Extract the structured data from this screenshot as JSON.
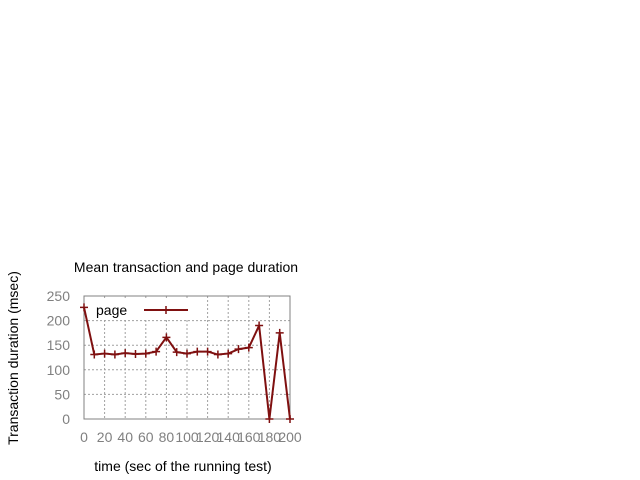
{
  "chart_data": {
    "type": "line",
    "title": "Mean transaction and page duration",
    "xlabel": "time (sec of the running test)",
    "ylabel": "Transaction duration (msec)",
    "xlim": [
      0,
      200
    ],
    "ylim": [
      0,
      250
    ],
    "x_ticks": [
      "0",
      "20",
      "40",
      "60",
      "80",
      "100",
      "120",
      "140",
      "160",
      "180",
      "200"
    ],
    "y_ticks": [
      "0",
      "50",
      "100",
      "150",
      "200",
      "250"
    ],
    "grid": true,
    "legend_position": "top-left",
    "series": [
      {
        "name": "page",
        "color": "#7f1010",
        "marker": "plus",
        "x": [
          0,
          10,
          20,
          30,
          40,
          50,
          60,
          70,
          80,
          90,
          100,
          110,
          120,
          130,
          140,
          150,
          160,
          170,
          180,
          190,
          200
        ],
        "y": [
          227,
          131,
          133,
          131,
          134,
          132,
          133,
          137,
          166,
          136,
          133,
          137,
          137,
          131,
          133,
          142,
          145,
          190,
          0,
          175,
          0
        ]
      }
    ]
  }
}
